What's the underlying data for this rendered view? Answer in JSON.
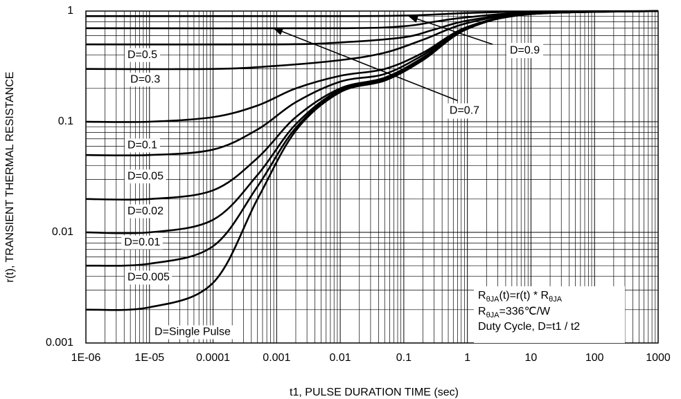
{
  "chart_data": {
    "type": "line",
    "xlabel": "t1, PULSE DURATION TIME (sec)",
    "ylabel": "r(t), TRANSIENT THERMAL RESISTANCE",
    "xscale": "log",
    "yscale": "log",
    "xlim": [
      1e-06,
      1000
    ],
    "ylim": [
      0.001,
      1
    ],
    "grid": true,
    "x_tick_labels": [
      "1E-06",
      "1E-05",
      "0.0001",
      "0.001",
      "0.01",
      "0.1",
      "1",
      "10",
      "100",
      "1000"
    ],
    "y_tick_labels": [
      "0.001",
      "0.01",
      "0.1",
      "1"
    ],
    "series": [
      {
        "name": "D=0.9",
        "values": [
          [
            1e-06,
            0.9
          ],
          [
            0.01,
            0.9
          ],
          [
            0.1,
            0.91
          ],
          [
            0.3,
            0.93
          ],
          [
            1,
            0.96
          ],
          [
            10,
            0.99
          ],
          [
            1000,
            1.0
          ]
        ]
      },
      {
        "name": "D=0.7",
        "values": [
          [
            1e-06,
            0.7
          ],
          [
            0.01,
            0.7
          ],
          [
            0.1,
            0.73
          ],
          [
            0.3,
            0.8
          ],
          [
            1,
            0.88
          ],
          [
            10,
            0.97
          ],
          [
            1000,
            1.0
          ]
        ]
      },
      {
        "name": "D=0.5",
        "values": [
          [
            1e-06,
            0.5
          ],
          [
            0.001,
            0.5
          ],
          [
            0.01,
            0.52
          ],
          [
            0.1,
            0.58
          ],
          [
            0.3,
            0.68
          ],
          [
            1,
            0.82
          ],
          [
            10,
            0.96
          ],
          [
            1000,
            1.0
          ]
        ]
      },
      {
        "name": "D=0.3",
        "values": [
          [
            1e-06,
            0.3
          ],
          [
            0.0001,
            0.3
          ],
          [
            0.001,
            0.32
          ],
          [
            0.01,
            0.36
          ],
          [
            0.05,
            0.42
          ],
          [
            0.2,
            0.55
          ],
          [
            1,
            0.78
          ],
          [
            10,
            0.95
          ],
          [
            1000,
            1.0
          ]
        ]
      },
      {
        "name": "D=0.1",
        "values": [
          [
            1e-06,
            0.1
          ],
          [
            1e-05,
            0.1
          ],
          [
            0.0001,
            0.11
          ],
          [
            0.0005,
            0.14
          ],
          [
            0.002,
            0.2
          ],
          [
            0.01,
            0.26
          ],
          [
            0.05,
            0.3
          ],
          [
            0.2,
            0.42
          ],
          [
            1,
            0.72
          ],
          [
            10,
            0.94
          ],
          [
            1000,
            1.0
          ]
        ]
      },
      {
        "name": "D=0.05",
        "values": [
          [
            1e-06,
            0.05
          ],
          [
            1e-05,
            0.05
          ],
          [
            0.0001,
            0.056
          ],
          [
            0.0005,
            0.085
          ],
          [
            0.002,
            0.15
          ],
          [
            0.01,
            0.23
          ],
          [
            0.05,
            0.27
          ],
          [
            0.2,
            0.4
          ],
          [
            1,
            0.71
          ],
          [
            10,
            0.94
          ],
          [
            1000,
            1.0
          ]
        ]
      },
      {
        "name": "D=0.02",
        "values": [
          [
            1e-06,
            0.02
          ],
          [
            1e-05,
            0.02
          ],
          [
            0.0001,
            0.024
          ],
          [
            0.0005,
            0.047
          ],
          [
            0.002,
            0.11
          ],
          [
            0.01,
            0.2
          ],
          [
            0.05,
            0.25
          ],
          [
            0.2,
            0.38
          ],
          [
            1,
            0.7
          ],
          [
            10,
            0.94
          ],
          [
            1000,
            1.0
          ]
        ]
      },
      {
        "name": "D=0.01",
        "values": [
          [
            1e-06,
            0.01
          ],
          [
            1e-05,
            0.01
          ],
          [
            0.0001,
            0.013
          ],
          [
            0.0005,
            0.033
          ],
          [
            0.002,
            0.095
          ],
          [
            0.01,
            0.195
          ],
          [
            0.05,
            0.245
          ],
          [
            0.2,
            0.37
          ],
          [
            1,
            0.7
          ],
          [
            10,
            0.94
          ],
          [
            1000,
            1.0
          ]
        ]
      },
      {
        "name": "D=0.005",
        "values": [
          [
            1e-06,
            0.005
          ],
          [
            1e-05,
            0.0052
          ],
          [
            0.0001,
            0.0075
          ],
          [
            0.0005,
            0.026
          ],
          [
            0.002,
            0.088
          ],
          [
            0.01,
            0.19
          ],
          [
            0.05,
            0.24
          ],
          [
            0.2,
            0.37
          ],
          [
            1,
            0.7
          ],
          [
            10,
            0.94
          ],
          [
            1000,
            1.0
          ]
        ]
      },
      {
        "name": "D=Single Pulse",
        "values": [
          [
            1e-06,
            0.002
          ],
          [
            1e-05,
            0.0021
          ],
          [
            0.0001,
            0.0035
          ],
          [
            0.0005,
            0.02
          ],
          [
            0.002,
            0.083
          ],
          [
            0.01,
            0.185
          ],
          [
            0.05,
            0.235
          ],
          [
            0.2,
            0.36
          ],
          [
            1,
            0.69
          ],
          [
            10,
            0.94
          ],
          [
            1000,
            1.0
          ]
        ]
      }
    ],
    "curve_labels": [
      {
        "text": "D=0.5",
        "x": 4.5e-06,
        "y": 0.4
      },
      {
        "text": "D=0.3",
        "x": 5e-06,
        "y": 0.24
      },
      {
        "text": "D=0.1",
        "x": 4.5e-06,
        "y": 0.061
      },
      {
        "text": "D=0.05",
        "x": 4.5e-06,
        "y": 0.032
      },
      {
        "text": "D=0.02",
        "x": 4.5e-06,
        "y": 0.0155
      },
      {
        "text": "D=0.01",
        "x": 4e-06,
        "y": 0.0081
      },
      {
        "text": "D=0.005",
        "x": 4.5e-06,
        "y": 0.0039
      },
      {
        "text": "D=Single Pulse",
        "x": 1.2e-05,
        "y": 0.00125
      }
    ],
    "callouts": [
      {
        "text": "D=0.9",
        "label_x": 8,
        "label_y": 0.44,
        "arrow_from": [
          2.5,
          0.5
        ],
        "arrow_to": [
          0.12,
          0.9
        ]
      },
      {
        "text": "D=0.7",
        "label_x": 0.9,
        "label_y": 0.125,
        "arrow_from": [
          0.7,
          0.155
        ],
        "arrow_to": [
          0.0009,
          0.7
        ]
      }
    ],
    "annotation": {
      "line1": {
        "r": "R",
        "sub1": "θJA",
        "mid": "(t)=r(t) * R",
        "sub2": "θJA"
      },
      "line2": {
        "r": "R",
        "sub": "θJA",
        "rest": "=336℃/W"
      },
      "line3": "Duty Cycle, D=t1 / t2"
    }
  }
}
